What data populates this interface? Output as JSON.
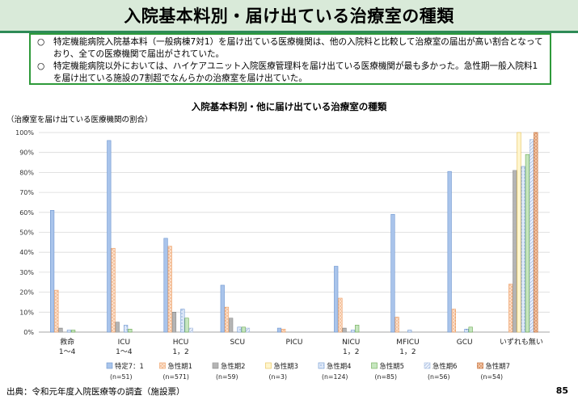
{
  "page": {
    "title": "入院基本料別・届け出ている治療室の種類",
    "summary": [
      {
        "mark": "○",
        "text": "特定機能病院入院基本料（一般病棟7対1）を届け出ている医療機関は、他の入院料と比較して治療室の届出が高い割合となっており、全ての医療機関で届出がされていた。"
      },
      {
        "mark": "○",
        "text": "特定機能病院以外においては、ハイケアユニット入院医療管理料を届け出ている医療機関が最も多かった。急性期一般入院料1を届け出ている施設の7割超でなんらかの治療室を届け出ていた。"
      }
    ],
    "y_note": "（治療室を届け出ている医療機関の割合）",
    "source": "出典：令和元年度入院医療等の調査（施設票）",
    "page_number": "85"
  },
  "chart_data": {
    "type": "bar",
    "title": "入院基本料別・他に届け出ている治療室の種類",
    "ylim": [
      0,
      100
    ],
    "yticks": [
      "0%",
      "10%",
      "20%",
      "30%",
      "40%",
      "50%",
      "60%",
      "70%",
      "80%",
      "90%",
      "100%"
    ],
    "grid": true,
    "legend_position": "bottom",
    "categories": [
      [
        "救命",
        "1～4"
      ],
      [
        "ICU",
        "1～4"
      ],
      [
        "HCU",
        "1，2"
      ],
      [
        "SCU"
      ],
      [
        "PICU"
      ],
      [
        "NICU",
        "1，2"
      ],
      [
        "MFICU",
        "1，2"
      ],
      [
        "GCU"
      ],
      [
        "いずれも無い"
      ]
    ],
    "series": [
      {
        "name": "特定7：1",
        "n": "(n=51)",
        "fill": "#a9c4eb",
        "stroke": "#6d95cf",
        "pattern": "solid",
        "values": [
          61,
          96,
          47,
          23.5,
          2,
          33,
          59,
          80.5,
          0
        ]
      },
      {
        "name": "急性期1",
        "n": "(n=571)",
        "fill": "#fbe0cc",
        "stroke": "#ed9b5f",
        "pattern": "dots",
        "values": [
          21,
          42,
          43,
          12.5,
          1.5,
          17,
          7.5,
          11.5,
          24
        ]
      },
      {
        "name": "急性期2",
        "n": "(n=59)",
        "fill": "#d0d0d0",
        "stroke": "#8c8c8c",
        "pattern": "hlines",
        "values": [
          2,
          5,
          10,
          7,
          0,
          2,
          0,
          0,
          81
        ]
      },
      {
        "name": "急性期3",
        "n": "(n=3)",
        "fill": "#fff5cc",
        "stroke": "#e6c050",
        "pattern": "solid",
        "values": [
          0,
          0,
          0,
          0,
          0,
          0,
          0,
          0,
          100
        ]
      },
      {
        "name": "急性期4",
        "n": "(n=124)",
        "fill": "#dfe9f8",
        "stroke": "#6d95cf",
        "pattern": "dash",
        "values": [
          1,
          3.5,
          11.5,
          2.5,
          0,
          1,
          1,
          1.5,
          83
        ]
      },
      {
        "name": "急性期5",
        "n": "(n=85)",
        "fill": "#c6e6bf",
        "stroke": "#6aa84f",
        "pattern": "solid",
        "values": [
          1,
          1.5,
          7,
          2.5,
          0,
          3.5,
          0,
          2.5,
          89
        ]
      },
      {
        "name": "急性期6",
        "n": "(n=56)",
        "fill": "#edf2fb",
        "stroke": "#a0b8de",
        "pattern": "diag",
        "values": [
          0,
          0,
          2,
          2,
          0,
          0,
          0,
          0,
          96.5
        ]
      },
      {
        "name": "急性期7",
        "n": "(n=54)",
        "fill": "#f3c7a8",
        "stroke": "#c0652b",
        "pattern": "dots",
        "values": [
          0,
          0,
          0,
          0,
          0,
          0,
          0,
          0,
          100
        ]
      }
    ]
  }
}
